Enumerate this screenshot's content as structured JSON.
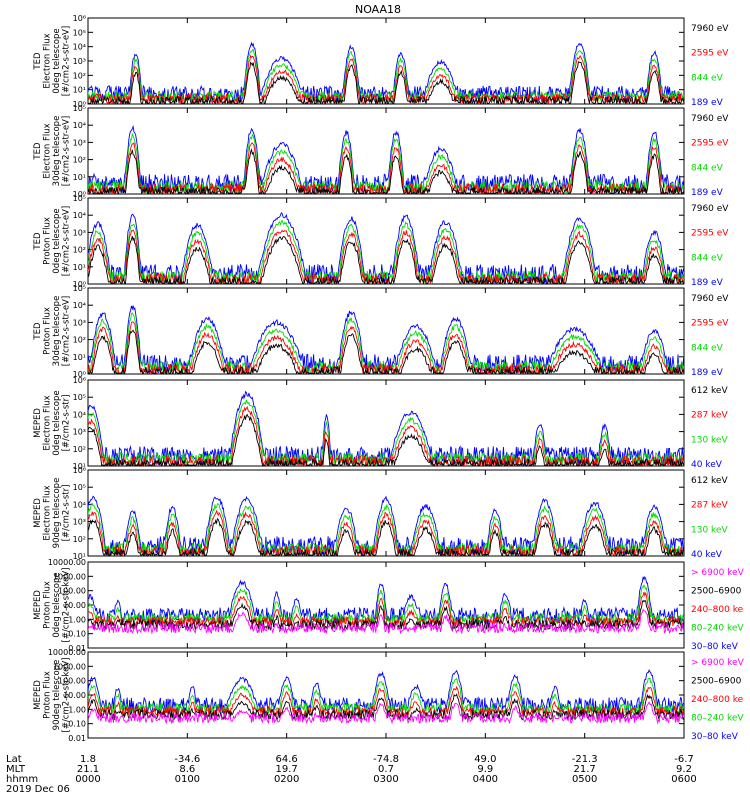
{
  "figure": {
    "title": "NOAA18",
    "date_label": "2019 Dec 06"
  },
  "footer": {
    "row_labels": [
      "Lat",
      "MLT",
      "hhmm"
    ],
    "ticks": [
      {
        "lat": "1.8",
        "mlt": "21.1",
        "hhmm": "0000"
      },
      {
        "lat": "-34.6",
        "mlt": "8.6",
        "hhmm": "0100"
      },
      {
        "lat": "64.6",
        "mlt": "19.7",
        "hhmm": "0200"
      },
      {
        "lat": "-74.8",
        "mlt": "0.7",
        "hhmm": "0300"
      },
      {
        "lat": "49.0",
        "mlt": "9.9",
        "hhmm": "0400"
      },
      {
        "lat": "-21.3",
        "mlt": "21.7",
        "hhmm": "0500"
      },
      {
        "lat": "-6.7",
        "mlt": "9.2",
        "hhmm": "0600"
      }
    ]
  },
  "colors": {
    "blue": "#0000ff",
    "red": "#ff0000",
    "green": "#00dd00",
    "black": "#000000",
    "magenta": "#ff00ff"
  },
  "chart_data": [
    {
      "type": "line",
      "ylabel": [
        "TED",
        "Electron Flux",
        "0deg telescope",
        "[#/cm2-s-str-eV]"
      ],
      "ytick_labels": [
        "10⁰",
        "10¹",
        "10²",
        "10³",
        "10⁴",
        "10⁵",
        "10⁶"
      ],
      "ylim_log10": [
        0,
        6
      ],
      "legend": [
        {
          "label": "7960 eV",
          "color": "#000000"
        },
        {
          "label": "2595 eV",
          "color": "#ff0000"
        },
        {
          "label": "844 eV",
          "color": "#00dd00"
        },
        {
          "label": "189 eV",
          "color": "#0000ff"
        }
      ],
      "x_hours": [
        0,
        6
      ],
      "events": [
        {
          "t": 0.48,
          "peak": 3.5,
          "width": 0.04
        },
        {
          "t": 1.65,
          "peak": 4.2,
          "width": 0.05
        },
        {
          "t": 1.95,
          "peak": 3.2,
          "width": 0.14
        },
        {
          "t": 2.65,
          "peak": 4.0,
          "width": 0.05
        },
        {
          "t": 3.15,
          "peak": 3.5,
          "width": 0.05
        },
        {
          "t": 3.55,
          "peak": 2.9,
          "width": 0.12
        },
        {
          "t": 4.95,
          "peak": 4.2,
          "width": 0.06
        },
        {
          "t": 5.7,
          "peak": 3.6,
          "width": 0.05
        }
      ]
    },
    {
      "type": "line",
      "ylabel": [
        "TED",
        "Electron Flux",
        "30deg telescope",
        "[#/cm2-s-str-eV]"
      ],
      "ytick_labels": [
        "10⁰",
        "10¹",
        "10²",
        "10³",
        "10⁴",
        "10⁵"
      ],
      "ylim_log10": [
        0,
        5
      ],
      "legend": [
        {
          "label": "7960 eV",
          "color": "#000000"
        },
        {
          "label": "2595 eV",
          "color": "#ff0000"
        },
        {
          "label": "844 eV",
          "color": "#00dd00"
        },
        {
          "label": "189 eV",
          "color": "#0000ff"
        }
      ],
      "x_hours": [
        0,
        6
      ],
      "events": [
        {
          "t": 0.45,
          "peak": 3.8,
          "width": 0.05
        },
        {
          "t": 1.65,
          "peak": 3.8,
          "width": 0.05
        },
        {
          "t": 1.95,
          "peak": 2.9,
          "width": 0.14
        },
        {
          "t": 2.6,
          "peak": 3.6,
          "width": 0.05
        },
        {
          "t": 3.1,
          "peak": 3.6,
          "width": 0.05
        },
        {
          "t": 3.55,
          "peak": 2.6,
          "width": 0.12
        },
        {
          "t": 4.95,
          "peak": 3.7,
          "width": 0.06
        },
        {
          "t": 5.7,
          "peak": 3.6,
          "width": 0.05
        }
      ]
    },
    {
      "type": "line",
      "ylabel": [
        "TED",
        "Proton Flux",
        "0deg telescope",
        "[#/cm2-s-str-eV]"
      ],
      "ytick_labels": [
        "10⁰",
        "10¹",
        "10²",
        "10³",
        "10⁴",
        "10⁵"
      ],
      "ylim_log10": [
        0,
        5
      ],
      "legend": [
        {
          "label": "7960 eV",
          "color": "#000000"
        },
        {
          "label": "2595 eV",
          "color": "#ff0000"
        },
        {
          "label": "844 eV",
          "color": "#00dd00"
        },
        {
          "label": "189 eV",
          "color": "#0000ff"
        }
      ],
      "x_hours": [
        0,
        6
      ],
      "events": [
        {
          "t": 0.1,
          "peak": 3.5,
          "width": 0.08
        },
        {
          "t": 0.45,
          "peak": 4.0,
          "width": 0.05
        },
        {
          "t": 1.1,
          "peak": 3.4,
          "width": 0.1
        },
        {
          "t": 1.95,
          "peak": 4.0,
          "width": 0.14
        },
        {
          "t": 2.65,
          "peak": 3.8,
          "width": 0.08
        },
        {
          "t": 3.2,
          "peak": 3.9,
          "width": 0.08
        },
        {
          "t": 3.6,
          "peak": 3.6,
          "width": 0.1
        },
        {
          "t": 4.95,
          "peak": 3.8,
          "width": 0.1
        },
        {
          "t": 5.7,
          "peak": 3.0,
          "width": 0.08
        }
      ]
    },
    {
      "type": "line",
      "ylabel": [
        "TED",
        "Proton Flux",
        "30deg telescope",
        "[#/cm2-s-str-eV]"
      ],
      "ytick_labels": [
        "10⁰",
        "10¹",
        "10²",
        "10³",
        "10⁴",
        "10⁵"
      ],
      "ylim_log10": [
        0,
        5
      ],
      "legend": [
        {
          "label": "7960 eV",
          "color": "#000000"
        },
        {
          "label": "2595 eV",
          "color": "#ff0000"
        },
        {
          "label": "844 eV",
          "color": "#00dd00"
        },
        {
          "label": "189 eV",
          "color": "#0000ff"
        }
      ],
      "x_hours": [
        0,
        6
      ],
      "events": [
        {
          "t": 0.15,
          "peak": 3.5,
          "width": 0.08
        },
        {
          "t": 0.45,
          "peak": 3.9,
          "width": 0.05
        },
        {
          "t": 1.2,
          "peak": 3.2,
          "width": 0.12
        },
        {
          "t": 1.9,
          "peak": 3.0,
          "width": 0.18
        },
        {
          "t": 2.65,
          "peak": 3.6,
          "width": 0.08
        },
        {
          "t": 3.3,
          "peak": 2.8,
          "width": 0.14
        },
        {
          "t": 3.7,
          "peak": 3.2,
          "width": 0.1
        },
        {
          "t": 4.9,
          "peak": 2.6,
          "width": 0.2
        },
        {
          "t": 5.7,
          "peak": 2.5,
          "width": 0.1
        }
      ]
    },
    {
      "type": "line",
      "ylabel": [
        "MEPED",
        "Electron Flux",
        "0deg telescope",
        "[#/cm2-s-str]"
      ],
      "ytick_labels": [
        "10¹",
        "10²",
        "10³",
        "10⁴",
        "10⁵",
        "10⁶"
      ],
      "ylim_log10": [
        1,
        6
      ],
      "legend": [
        {
          "label": "612 keV",
          "color": "#000000"
        },
        {
          "label": "287 keV",
          "color": "#ff0000"
        },
        {
          "label": "130 keV",
          "color": "#00dd00"
        },
        {
          "label": "40 keV",
          "color": "#0000ff"
        }
      ],
      "x_hours": [
        0,
        6
      ],
      "events": [
        {
          "t": 0.03,
          "peak": 4.5,
          "width": 0.08
        },
        {
          "t": 1.6,
          "peak": 5.2,
          "width": 0.1
        },
        {
          "t": 2.4,
          "peak": 3.9,
          "width": 0.03
        },
        {
          "t": 3.25,
          "peak": 4.1,
          "width": 0.14
        },
        {
          "t": 4.55,
          "peak": 3.4,
          "width": 0.05
        },
        {
          "t": 5.2,
          "peak": 3.3,
          "width": 0.05
        }
      ]
    },
    {
      "type": "line",
      "ylabel": [
        "MEPED",
        "Electron Flux",
        "90deg telescope",
        "[#/cm2-s-str]"
      ],
      "ytick_labels": [
        "10¹",
        "10²",
        "10³",
        "10⁴",
        "10⁵",
        "10⁶"
      ],
      "ylim_log10": [
        1,
        6
      ],
      "legend": [
        {
          "label": "612 keV",
          "color": "#000000"
        },
        {
          "label": "287 keV",
          "color": "#ff0000"
        },
        {
          "label": "130 keV",
          "color": "#00dd00"
        },
        {
          "label": "40 keV",
          "color": "#0000ff"
        }
      ],
      "x_hours": [
        0,
        6
      ],
      "events": [
        {
          "t": 0.05,
          "peak": 4.4,
          "width": 0.08
        },
        {
          "t": 0.45,
          "peak": 3.6,
          "width": 0.06
        },
        {
          "t": 0.85,
          "peak": 3.8,
          "width": 0.06
        },
        {
          "t": 1.3,
          "peak": 4.4,
          "width": 0.08
        },
        {
          "t": 1.6,
          "peak": 4.3,
          "width": 0.1
        },
        {
          "t": 2.6,
          "peak": 3.8,
          "width": 0.08
        },
        {
          "t": 3.0,
          "peak": 4.3,
          "width": 0.08
        },
        {
          "t": 3.4,
          "peak": 3.9,
          "width": 0.1
        },
        {
          "t": 4.1,
          "peak": 3.7,
          "width": 0.06
        },
        {
          "t": 4.6,
          "peak": 4.2,
          "width": 0.08
        },
        {
          "t": 5.1,
          "peak": 4.1,
          "width": 0.1
        },
        {
          "t": 5.7,
          "peak": 3.9,
          "width": 0.08
        }
      ]
    },
    {
      "type": "line",
      "ylabel": [
        "MEPED",
        "Proton Flux",
        "0deg telescope",
        "[#/cm2-s-str-keV]"
      ],
      "ytick_labels": [
        "0.01",
        "0.10",
        "1.00",
        "10.00",
        "100.00",
        "1000.00",
        "10000.00"
      ],
      "ylim_log10": [
        -2,
        4
      ],
      "legend": [
        {
          "label": "> 6900 keV",
          "color": "#ff00ff"
        },
        {
          "label": "2500–6900",
          "color": "#000000"
        },
        {
          "label": "240–800 ke",
          "color": "#ff0000"
        },
        {
          "label": "80–240 keV",
          "color": "#00dd00"
        },
        {
          "label": "30–80 keV",
          "color": "#0000ff"
        }
      ],
      "x_hours": [
        0,
        6
      ],
      "events": [
        {
          "t": 0.02,
          "peak": 1.6,
          "width": 0.06
        },
        {
          "t": 0.3,
          "peak": 1.3,
          "width": 0.04
        },
        {
          "t": 1.55,
          "peak": 2.6,
          "width": 0.09
        },
        {
          "t": 1.9,
          "peak": 1.8,
          "width": 0.04
        },
        {
          "t": 2.1,
          "peak": 1.4,
          "width": 0.05
        },
        {
          "t": 2.95,
          "peak": 2.5,
          "width": 0.04
        },
        {
          "t": 3.25,
          "peak": 1.6,
          "width": 0.07
        },
        {
          "t": 3.6,
          "peak": 2.4,
          "width": 0.05
        },
        {
          "t": 4.2,
          "peak": 1.8,
          "width": 0.05
        },
        {
          "t": 5.0,
          "peak": 1.4,
          "width": 0.04
        },
        {
          "t": 5.6,
          "peak": 2.9,
          "width": 0.05
        }
      ]
    },
    {
      "type": "line",
      "ylabel": [
        "MEPED",
        "Proton Flux",
        "90deg telescope",
        "[#/cm2-s-str-keV]"
      ],
      "ytick_labels": [
        "0.01",
        "0.10",
        "1.00",
        "10.00",
        "100.00",
        "1000.00",
        "10000.00"
      ],
      "ylim_log10": [
        -2,
        4
      ],
      "legend": [
        {
          "label": "> 6900 keV",
          "color": "#ff00ff"
        },
        {
          "label": "2500–6900",
          "color": "#000000"
        },
        {
          "label": "240–800 ke",
          "color": "#ff0000"
        },
        {
          "label": "80–240 keV",
          "color": "#00dd00"
        },
        {
          "label": "30–80 keV",
          "color": "#0000ff"
        }
      ],
      "x_hours": [
        0,
        6
      ],
      "events": [
        {
          "t": 0.05,
          "peak": 2.2,
          "width": 0.06
        },
        {
          "t": 0.3,
          "peak": 1.5,
          "width": 0.04
        },
        {
          "t": 1.05,
          "peak": 1.6,
          "width": 0.04
        },
        {
          "t": 1.55,
          "peak": 2.1,
          "width": 0.12
        },
        {
          "t": 2.0,
          "peak": 2.2,
          "width": 0.06
        },
        {
          "t": 2.3,
          "peak": 1.8,
          "width": 0.05
        },
        {
          "t": 2.95,
          "peak": 2.5,
          "width": 0.06
        },
        {
          "t": 3.3,
          "peak": 1.6,
          "width": 0.07
        },
        {
          "t": 3.7,
          "peak": 2.6,
          "width": 0.06
        },
        {
          "t": 4.3,
          "peak": 2.3,
          "width": 0.06
        },
        {
          "t": 4.7,
          "peak": 1.5,
          "width": 0.05
        },
        {
          "t": 5.65,
          "peak": 2.6,
          "width": 0.06
        }
      ]
    }
  ]
}
